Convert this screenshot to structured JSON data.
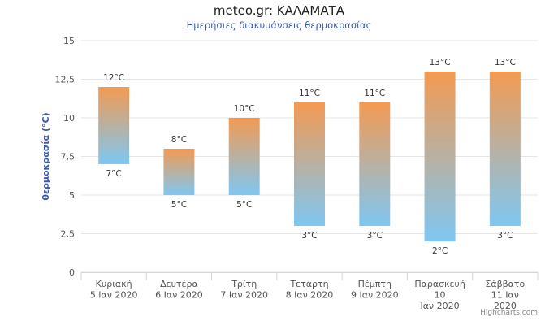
{
  "title": "meteo.gr: ΚΑΛΑΜΑΤΑ",
  "subtitle": "Ημερήσιες διακυμάνσεις θερμοκρασίας",
  "credits": "Highcharts.com",
  "colors": {
    "high": "#f39a52",
    "low": "#7fc7f2",
    "grid": "#e6e6e6"
  },
  "chart_data": {
    "type": "bar",
    "subtype": "columnrange",
    "ylabel": "θερμοκρασία (°C)",
    "ylim": [
      0,
      15
    ],
    "yticks": [
      "0",
      "2,5",
      "5",
      "7,5",
      "10",
      "12,5",
      "15"
    ],
    "grid": true,
    "unit": "°C",
    "categories": [
      [
        "Κυριακή",
        "5 Ιαν 2020"
      ],
      [
        "Δευτέρα",
        "6 Ιαν 2020"
      ],
      [
        "Τρίτη",
        "7 Ιαν 2020"
      ],
      [
        "Τετάρτη",
        "8 Ιαν 2020"
      ],
      [
        "Πέμπτη",
        "9 Ιαν 2020"
      ],
      [
        "Παρασκευή",
        "10",
        "Ιαν 2020"
      ],
      [
        "Σάββατο",
        "11 Ιαν",
        "2020"
      ]
    ],
    "low": [
      7,
      5,
      5,
      3,
      3,
      2,
      3
    ],
    "high": [
      12,
      8,
      10,
      11,
      11,
      13,
      13
    ],
    "low_labels": [
      "7°C",
      "5°C",
      "5°C",
      "3°C",
      "3°C",
      "2°C",
      "3°C"
    ],
    "high_labels": [
      "12°C",
      "8°C",
      "10°C",
      "11°C",
      "11°C",
      "13°C",
      "13°C"
    ]
  }
}
